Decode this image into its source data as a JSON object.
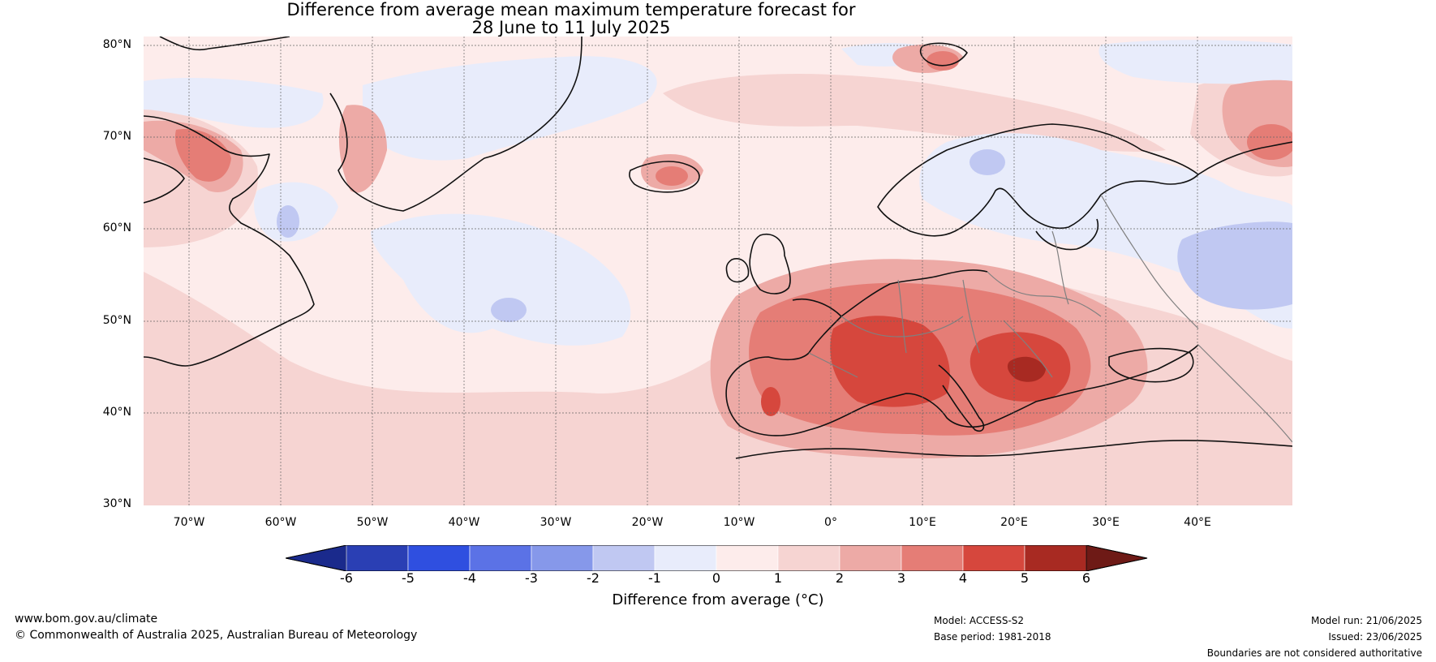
{
  "title": {
    "line1": "Difference from average mean maximum temperature forecast for",
    "line2": "28 June to 11 July 2025"
  },
  "map": {
    "lat_labels": [
      "80°N",
      "70°N",
      "60°N",
      "50°N",
      "40°N",
      "30°N"
    ],
    "lon_labels": [
      "70°W",
      "60°W",
      "50°W",
      "40°W",
      "30°W",
      "20°W",
      "10°W",
      "0°",
      "10°E",
      "20°E",
      "30°E",
      "40°E"
    ],
    "colors": {
      "cold_1": "#e8ecfb",
      "cold_2": "#c0c8f2",
      "warm_1": "#fdeceb",
      "warm_2": "#f6d4d2",
      "warm_3": "#edaaa6",
      "warm_4": "#e57d76",
      "warm_5": "#d6473d",
      "warm_6": "#a82a22",
      "coast": "#111111",
      "border": "#808080",
      "grid": "#666666"
    }
  },
  "colorbar": {
    "ticks": [
      "-6",
      "-5",
      "-4",
      "-3",
      "-2",
      "-1",
      "0",
      "1",
      "2",
      "3",
      "4",
      "5",
      "6"
    ],
    "colors": [
      "#1a2a8c",
      "#2a3fb4",
      "#2f4fe0",
      "#5b72e6",
      "#8698ea",
      "#c0c8f2",
      "#e8ecfb",
      "#fdeceb",
      "#f6d4d2",
      "#edaaa6",
      "#e57d76",
      "#d6473d",
      "#a82a22",
      "#6e1a16"
    ],
    "label": "Difference from average (°C)"
  },
  "footer": {
    "website": "www.bom.gov.au/climate",
    "copyright": "© Commonwealth of Australia 2025, Australian Bureau of Meteorology",
    "model": "Model: ACCESS-S2",
    "base_period": "Base period: 1981-2018",
    "model_run": "Model run: 21/06/2025",
    "issued": "Issued: 23/06/2025",
    "boundaries_note": "Boundaries are not considered authoritative"
  }
}
